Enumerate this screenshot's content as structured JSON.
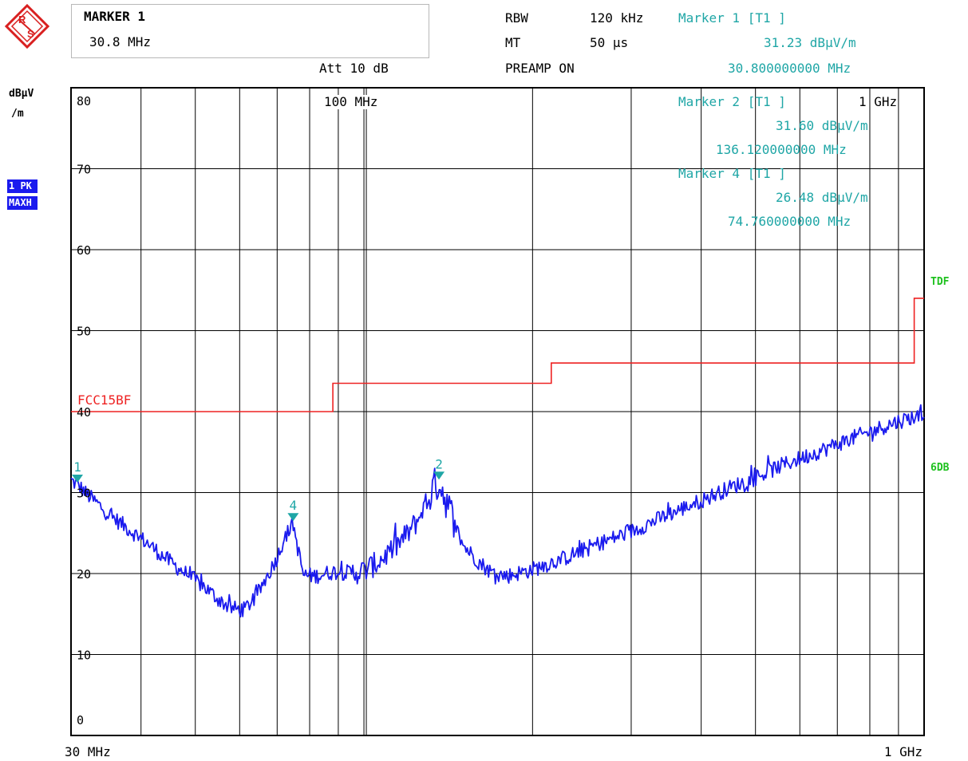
{
  "header": {
    "marker_box_title": "MARKER 1",
    "marker_box_value": "30.8 MHz",
    "att": "Att 10 dB",
    "rbw_label": "RBW",
    "rbw_value": "120 kHz",
    "mt_label": "MT",
    "mt_value": "50 µs",
    "preamp": "PREAMP ON"
  },
  "markers_readout": {
    "m1_title": "Marker 1 [T1 ]",
    "m1_level": "31.23 dBµV/m",
    "m1_freq": "30.800000000 MHz",
    "m2_title": "Marker 2 [T1 ]",
    "m2_level": "31.60 dBµV/m",
    "m2_freq": "136.120000000 MHz",
    "m4_title": "Marker 4 [T1 ]",
    "m4_level": "26.48 dBµV/m",
    "m4_freq": "74.760000000 MHz"
  },
  "left": {
    "unit_line1": "dBµV",
    "unit_line2": "/m",
    "trace_badge1": "1 PK",
    "trace_badge2": "MAXH"
  },
  "right": {
    "tdf": "TDF",
    "sixdb": "6DB"
  },
  "grid_labels": {
    "g100": "100 MHz",
    "g1": "1 GHz"
  },
  "limit_label": "FCC15BF",
  "colors": {
    "trace": "#1a1aee",
    "limit": "#ee2222",
    "marker": "#1fa6a6",
    "badge": "#1a1aee",
    "status": "#1ec11e"
  },
  "chart_data": {
    "type": "line",
    "x_scale": "log",
    "xlim_mhz": [
      30,
      1000
    ],
    "ylim": [
      0,
      80
    ],
    "ylabel": "dBµV/m",
    "x_tick_labels": [
      "30 MHz",
      "1 GHz"
    ],
    "y_tick_labels": [
      "80",
      "70",
      "60",
      "50",
      "40",
      "30",
      "20",
      "10",
      "0"
    ],
    "series": [
      {
        "name": "1 PK MAXH",
        "x_mhz": [
          30,
          31,
          32,
          33.5,
          35,
          37,
          39,
          41,
          43,
          45,
          47,
          49,
          52,
          55,
          58,
          61,
          64,
          67,
          70,
          72,
          74.76,
          76,
          78,
          82,
          88,
          95,
          100,
          105,
          110,
          115,
          120,
          125,
          130,
          133,
          136.12,
          140,
          145,
          150,
          160,
          170,
          180,
          200,
          230,
          260,
          300,
          350,
          400,
          450,
          500,
          550,
          600,
          650,
          700,
          750,
          800,
          850,
          900,
          950,
          1000
        ],
        "y": [
          31.5,
          30.8,
          29.8,
          28.6,
          27.3,
          26.1,
          24.9,
          23.8,
          22.6,
          21.5,
          20.5,
          19.6,
          18.3,
          16.8,
          15.7,
          15.5,
          17.0,
          19.5,
          22.0,
          24.3,
          26.2,
          23.5,
          19.8,
          19.7,
          20.2,
          20.1,
          20.3,
          21.2,
          22.4,
          23.6,
          25.0,
          26.7,
          29.1,
          30.6,
          31.4,
          29.2,
          26.2,
          23.6,
          21.5,
          20.0,
          19.7,
          20.5,
          22.0,
          23.6,
          25.2,
          27.3,
          29.0,
          30.6,
          31.8,
          33.2,
          34.2,
          35.1,
          36.0,
          36.8,
          37.5,
          38.2,
          38.8,
          39.3,
          39.4
        ]
      },
      {
        "name": "FCC15BF",
        "x_mhz": [
          30,
          88,
          88,
          216,
          216,
          960,
          960,
          1000
        ],
        "y": [
          40,
          40,
          43.5,
          43.5,
          46,
          46,
          54,
          54
        ]
      }
    ],
    "markers": [
      {
        "label": "1",
        "x_mhz": 30.8,
        "y": 31.23
      },
      {
        "label": "2",
        "x_mhz": 136.12,
        "y": 31.6
      },
      {
        "label": "4",
        "x_mhz": 74.76,
        "y": 26.48
      }
    ],
    "grid": true
  }
}
